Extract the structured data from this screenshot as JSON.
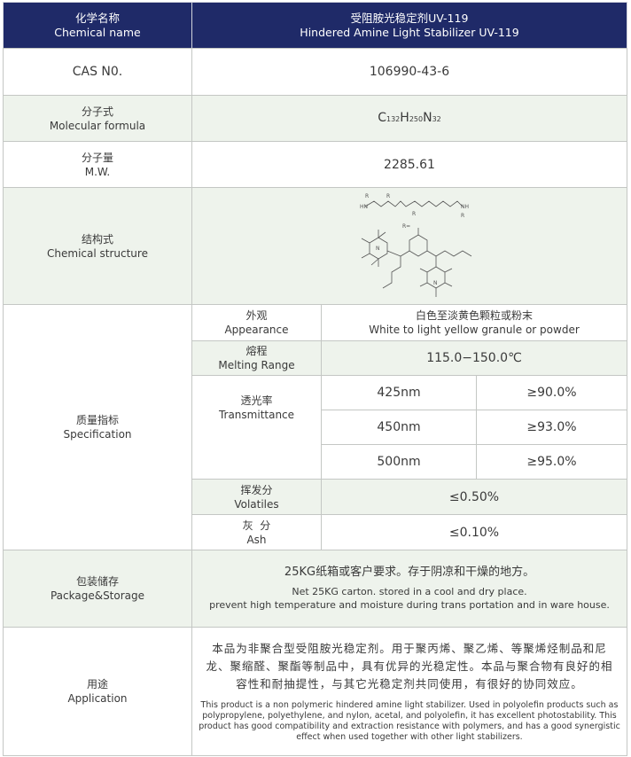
{
  "header": {
    "label_zh": "化学名称",
    "label_en": "Chemical name",
    "value_zh": "受阻胺光稳定剂UV-119",
    "value_en": "Hindered Amine Light Stabilizer  UV-119"
  },
  "cas": {
    "label": "CAS  N0.",
    "value": "106990-43-6"
  },
  "formula": {
    "label_zh": "分子式",
    "label_en": "Molecular formula",
    "c": "C",
    "c_n": "132",
    "h": "H",
    "h_n": "250",
    "n": "N",
    "n_n": "32"
  },
  "mw": {
    "label_zh": "分子量",
    "label_en": "M.W.",
    "value": "2285.61"
  },
  "structure": {
    "label_zh": "结构式",
    "label_en": "Chemical structure",
    "r_label": "R=",
    "atoms": {
      "r": "R",
      "nh": "HN",
      "nh2": "NH",
      "n": "N"
    }
  },
  "spec": {
    "label_zh": "质量指标",
    "label_en": "Specification",
    "appearance": {
      "label_zh": "外观",
      "label_en": "Appearance",
      "value_zh": "白色至淡黄色颗粒或粉末",
      "value_en": "White to light yellow granule or powder"
    },
    "melting": {
      "label_zh": "熔程",
      "label_en": "Melting Range",
      "value": "115.0−150.0℃"
    },
    "transmittance": {
      "label_zh": "透光率",
      "label_en": "Transmittance",
      "rows": [
        {
          "wavelength": "425nm",
          "value": "≥90.0%"
        },
        {
          "wavelength": "450nm",
          "value": "≥93.0%"
        },
        {
          "wavelength": "500nm",
          "value": "≥95.0%"
        }
      ]
    },
    "volatiles": {
      "label_zh": "挥发分",
      "label_en": "Volatiles",
      "value": "≤0.50%"
    },
    "ash": {
      "label_zh": "灰  分",
      "label_en": "Ash",
      "value": "≤0.10%"
    }
  },
  "package": {
    "label_zh": "包装储存",
    "label_en": "Package&Storage",
    "value_zh": "25KG纸箱或客户要求。存于阴凉和干燥的地方。",
    "value_en_1": "Net 25KG carton. stored in a cool and dry place.",
    "value_en_2": "prevent high temperature and moisture during trans portation and in ware house."
  },
  "application": {
    "label_zh": "用途",
    "label_en": "Application",
    "value_zh": "本品为非聚合型受阻胺光稳定剂。用于聚丙烯、聚乙烯、等聚烯烃制品和尼龙、聚缩醛、聚酯等制品中，具有优异的光稳定性。本品与聚合物有良好的相容性和耐抽提性，与其它光稳定剂共同使用，有很好的协同效应。",
    "value_en": "This product is a non polymeric hindered amine light stabilizer. Used in polyolefin products such as polypropylene, polyethylene, and nylon, acetal, and polyolefin, it has excellent photostability. This product has good compatibility and extraction resistance with polymers, and has a good synergistic effect when used together with other light stabilizers."
  },
  "colors": {
    "header": "#1f2a68",
    "row_green": "#eef3ec",
    "border": "#c4c7c4"
  }
}
